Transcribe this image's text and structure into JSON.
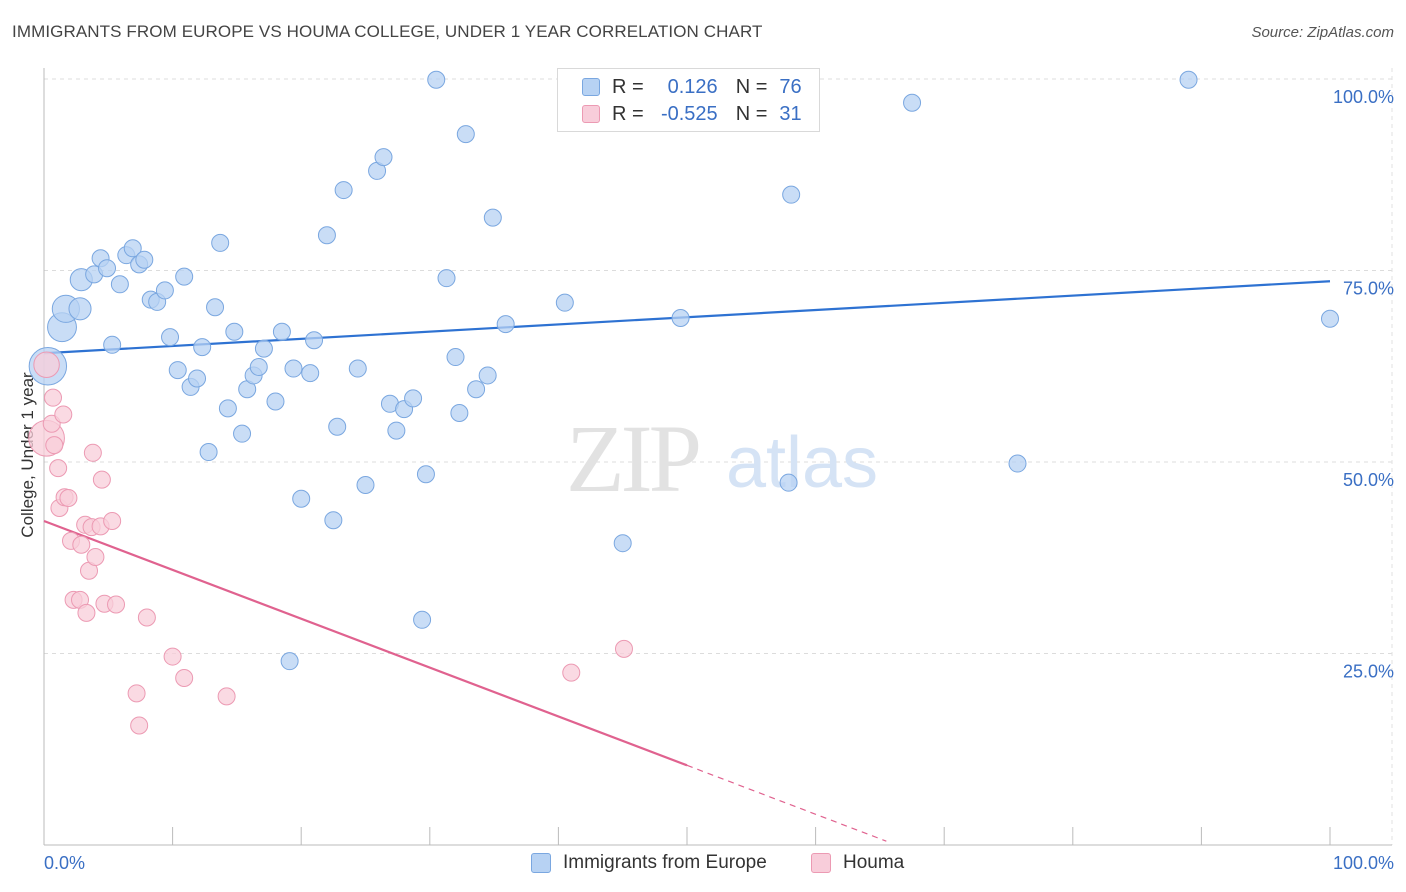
{
  "header": {
    "title": "IMMIGRANTS FROM EUROPE VS HOUMA COLLEGE, UNDER 1 YEAR CORRELATION CHART",
    "source": "Source: ZipAtlas.com"
  },
  "watermark": {
    "zip": "ZIP",
    "atlas": "atlas"
  },
  "legend": {
    "rows": [
      {
        "r_label": "R =",
        "r_value": "0.126",
        "n_label": "N =",
        "n_value": "76",
        "color": "#a9c8f0",
        "border": "#7aa7e0"
      },
      {
        "r_label": "R =",
        "r_value": "-0.525",
        "n_label": "N =",
        "n_value": "31",
        "color": "#f6c1d1",
        "border": "#ec9ab3"
      }
    ]
  },
  "bottom_legend": [
    {
      "label": "Immigrants from Europe",
      "color": "#b7d2f3",
      "border": "#7aa7e0"
    },
    {
      "label": "Houma",
      "color": "#f8cdda",
      "border": "#ec9ab3"
    }
  ],
  "chart_data": {
    "type": "scatter",
    "title": "IMMIGRANTS FROM EUROPE VS HOUMA COLLEGE, UNDER 1 YEAR CORRELATION CHART",
    "ylabel": "College, Under 1 year",
    "xlabel": "",
    "xlim": [
      0,
      100
    ],
    "ylim": [
      0,
      100
    ],
    "x_tick_labels": [
      "0.0%",
      "100.0%"
    ],
    "y_tick_labels": [
      {
        "value": 100,
        "label": "100.0%"
      },
      {
        "value": 75,
        "label": "75.0%"
      },
      {
        "value": 50,
        "label": "50.0%"
      },
      {
        "value": 25,
        "label": "25.0%"
      }
    ],
    "grid": true,
    "legend_position": "top-center",
    "series": [
      {
        "name": "Immigrants from Europe",
        "color": "#7aa7e0",
        "fill": "#b7d2f3",
        "trend": {
          "x": [
            0,
            100
          ],
          "y": [
            64.2,
            73.6
          ],
          "color": "#2e72d2"
        },
        "points": [
          [
            0.3,
            62.5,
            2.2
          ],
          [
            1.4,
            67.6,
            1.7
          ],
          [
            1.7,
            70.0,
            1.6
          ],
          [
            2.8,
            70.0,
            1.3
          ],
          [
            2.9,
            73.8,
            1.3
          ],
          [
            3.9,
            74.5,
            1
          ],
          [
            4.4,
            76.6,
            1
          ],
          [
            4.9,
            75.3,
            1
          ],
          [
            5.3,
            65.3,
            1
          ],
          [
            5.9,
            73.2,
            1
          ],
          [
            6.4,
            77.0,
            1
          ],
          [
            6.9,
            77.9,
            1
          ],
          [
            7.4,
            75.8,
            1
          ],
          [
            7.8,
            76.4,
            1
          ],
          [
            8.3,
            71.2,
            1
          ],
          [
            8.8,
            70.9,
            1
          ],
          [
            9.4,
            72.4,
            1
          ],
          [
            9.8,
            66.3,
            1
          ],
          [
            10.4,
            62.0,
            1
          ],
          [
            10.9,
            74.2,
            1
          ],
          [
            11.4,
            59.8,
            1
          ],
          [
            11.9,
            60.9,
            1
          ],
          [
            12.3,
            65.0,
            1
          ],
          [
            12.8,
            51.3,
            1
          ],
          [
            13.3,
            70.2,
            1
          ],
          [
            13.7,
            78.6,
            1
          ],
          [
            14.3,
            57.0,
            1
          ],
          [
            14.8,
            67.0,
            1
          ],
          [
            15.4,
            53.7,
            1
          ],
          [
            15.8,
            59.5,
            1
          ],
          [
            16.3,
            61.3,
            1
          ],
          [
            16.7,
            62.4,
            1
          ],
          [
            17.1,
            64.8,
            1
          ],
          [
            18.0,
            57.9,
            1
          ],
          [
            18.5,
            67.0,
            1
          ],
          [
            19.1,
            24.0,
            1
          ],
          [
            19.4,
            62.2,
            1
          ],
          [
            20.0,
            45.2,
            1
          ],
          [
            20.7,
            61.6,
            1
          ],
          [
            21.0,
            65.9,
            1
          ],
          [
            22.0,
            79.6,
            1
          ],
          [
            22.5,
            42.4,
            1
          ],
          [
            22.8,
            54.6,
            1
          ],
          [
            23.3,
            85.5,
            1
          ],
          [
            24.4,
            62.2,
            1
          ],
          [
            25.0,
            47.0,
            1
          ],
          [
            25.9,
            88.0,
            1
          ],
          [
            26.4,
            89.8,
            1
          ],
          [
            26.9,
            57.6,
            1
          ],
          [
            27.4,
            54.1,
            1
          ],
          [
            28.0,
            56.9,
            1
          ],
          [
            28.7,
            58.3,
            1
          ],
          [
            29.4,
            29.4,
            1
          ],
          [
            29.7,
            48.4,
            1
          ],
          [
            30.5,
            99.9,
            1
          ],
          [
            31.3,
            74.0,
            1
          ],
          [
            32.0,
            63.7,
            1
          ],
          [
            32.3,
            56.4,
            1
          ],
          [
            32.8,
            92.8,
            1
          ],
          [
            33.6,
            59.5,
            1
          ],
          [
            34.5,
            61.3,
            1
          ],
          [
            34.9,
            81.9,
            1
          ],
          [
            35.9,
            68.0,
            1
          ],
          [
            40.5,
            70.8,
            1
          ],
          [
            45.0,
            39.4,
            1
          ],
          [
            47.6,
            99.9,
            1
          ],
          [
            49.5,
            68.8,
            1
          ],
          [
            57.9,
            47.3,
            1
          ],
          [
            58.1,
            84.9,
            1
          ],
          [
            67.5,
            96.9,
            1
          ],
          [
            75.7,
            49.8,
            1
          ],
          [
            89.0,
            99.9,
            1
          ],
          [
            100.0,
            68.7,
            1
          ]
        ]
      },
      {
        "name": "Houma",
        "color": "#ec9ab3",
        "fill": "#f8cdda",
        "trend": {
          "x": [
            0,
            50.0
          ],
          "y": [
            42.3,
            10.4
          ],
          "dash_to": {
            "x": 65.5,
            "y": 0.5
          },
          "color": "#e0628f"
        },
        "points": [
          [
            0.2,
            62.7,
            1.5
          ],
          [
            0.2,
            53.1,
            2.1
          ],
          [
            0.6,
            55.0,
            1
          ],
          [
            0.7,
            58.4,
            1
          ],
          [
            0.8,
            52.2,
            1
          ],
          [
            1.1,
            49.2,
            1
          ],
          [
            1.2,
            44.0,
            1
          ],
          [
            1.5,
            56.2,
            1
          ],
          [
            1.6,
            45.4,
            1
          ],
          [
            1.9,
            45.3,
            1
          ],
          [
            2.1,
            39.7,
            1
          ],
          [
            2.3,
            32.0,
            1
          ],
          [
            2.8,
            32.0,
            1
          ],
          [
            2.9,
            39.2,
            1
          ],
          [
            3.2,
            41.8,
            1
          ],
          [
            3.3,
            30.3,
            1
          ],
          [
            3.5,
            35.8,
            1
          ],
          [
            3.7,
            41.5,
            1
          ],
          [
            3.8,
            51.2,
            1
          ],
          [
            4.0,
            37.6,
            1
          ],
          [
            4.4,
            41.6,
            1
          ],
          [
            4.5,
            47.7,
            1
          ],
          [
            4.7,
            31.5,
            1
          ],
          [
            5.3,
            42.3,
            1
          ],
          [
            5.6,
            31.4,
            1
          ],
          [
            7.2,
            19.8,
            1
          ],
          [
            7.4,
            15.6,
            1
          ],
          [
            8.0,
            29.7,
            1
          ],
          [
            10.0,
            24.6,
            1
          ],
          [
            10.9,
            21.8,
            1
          ],
          [
            14.2,
            19.4,
            1
          ],
          [
            41.0,
            22.5,
            1
          ],
          [
            45.1,
            25.6,
            1
          ]
        ]
      }
    ]
  }
}
